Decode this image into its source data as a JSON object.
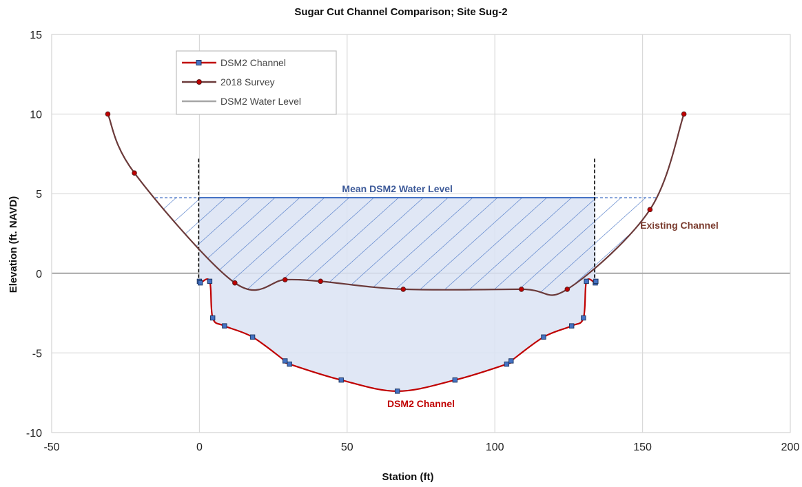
{
  "chart_data": {
    "type": "line",
    "title": "Sugar Cut Channel Comparison; Site Sug-2",
    "xlabel": "Station (ft)",
    "ylabel": "Elevation (ft. NAVD)",
    "xlim": [
      -50,
      200
    ],
    "ylim": [
      -10,
      15
    ],
    "xticks": [
      -50,
      0,
      50,
      100,
      150,
      200
    ],
    "yticks": [
      -10,
      -5,
      0,
      5,
      10,
      15
    ],
    "grid": true,
    "legend_position": "top-left",
    "series": [
      {
        "name": "DSM2 Channel",
        "color": "#c00000",
        "marker": "square",
        "points": [
          [
            0,
            -0.5
          ],
          [
            0.3,
            -0.6
          ],
          [
            3.5,
            -0.5
          ],
          [
            4.5,
            -2.8
          ],
          [
            8.5,
            -3.3
          ],
          [
            18,
            -4
          ],
          [
            29,
            -5.5
          ],
          [
            30.5,
            -5.7
          ],
          [
            48,
            -6.7
          ],
          [
            67,
            -7.4
          ],
          [
            86.5,
            -6.7
          ],
          [
            104,
            -5.7
          ],
          [
            105.5,
            -5.5
          ],
          [
            116.5,
            -4
          ],
          [
            126,
            -3.3
          ],
          [
            130,
            -2.8
          ],
          [
            131,
            -0.5
          ],
          [
            134,
            -0.6
          ],
          [
            134.2,
            -0.5
          ]
        ]
      },
      {
        "name": "2018 Survey",
        "color": "#6b3a3a",
        "marker": "circle",
        "points": [
          [
            -31,
            10
          ],
          [
            -22,
            6.3
          ],
          [
            12,
            -0.6
          ],
          [
            29,
            -0.4
          ],
          [
            41,
            -0.5
          ],
          [
            69,
            -1
          ],
          [
            109,
            -1
          ],
          [
            124.5,
            -1
          ],
          [
            152.5,
            4
          ],
          [
            164,
            10
          ]
        ]
      },
      {
        "name": "DSM2 Water Level",
        "color": "#a6a6a6",
        "marker": "none",
        "points": [
          [
            0,
            4.75
          ],
          [
            134,
            4.75
          ]
        ]
      }
    ],
    "water_level": 4.75,
    "channel_bounds": [
      0,
      134
    ],
    "annotations": [
      {
        "text": "Mean DSM2 Water Level",
        "x": 67,
        "y": 5.1,
        "color": "#3d5a99"
      },
      {
        "text": "Existing Channel",
        "x": 163,
        "y": 2.8,
        "color": "#7a3b2e"
      },
      {
        "text": "DSM2 Channel",
        "x": 75,
        "y": -8.4,
        "color": "#c00000"
      }
    ]
  }
}
